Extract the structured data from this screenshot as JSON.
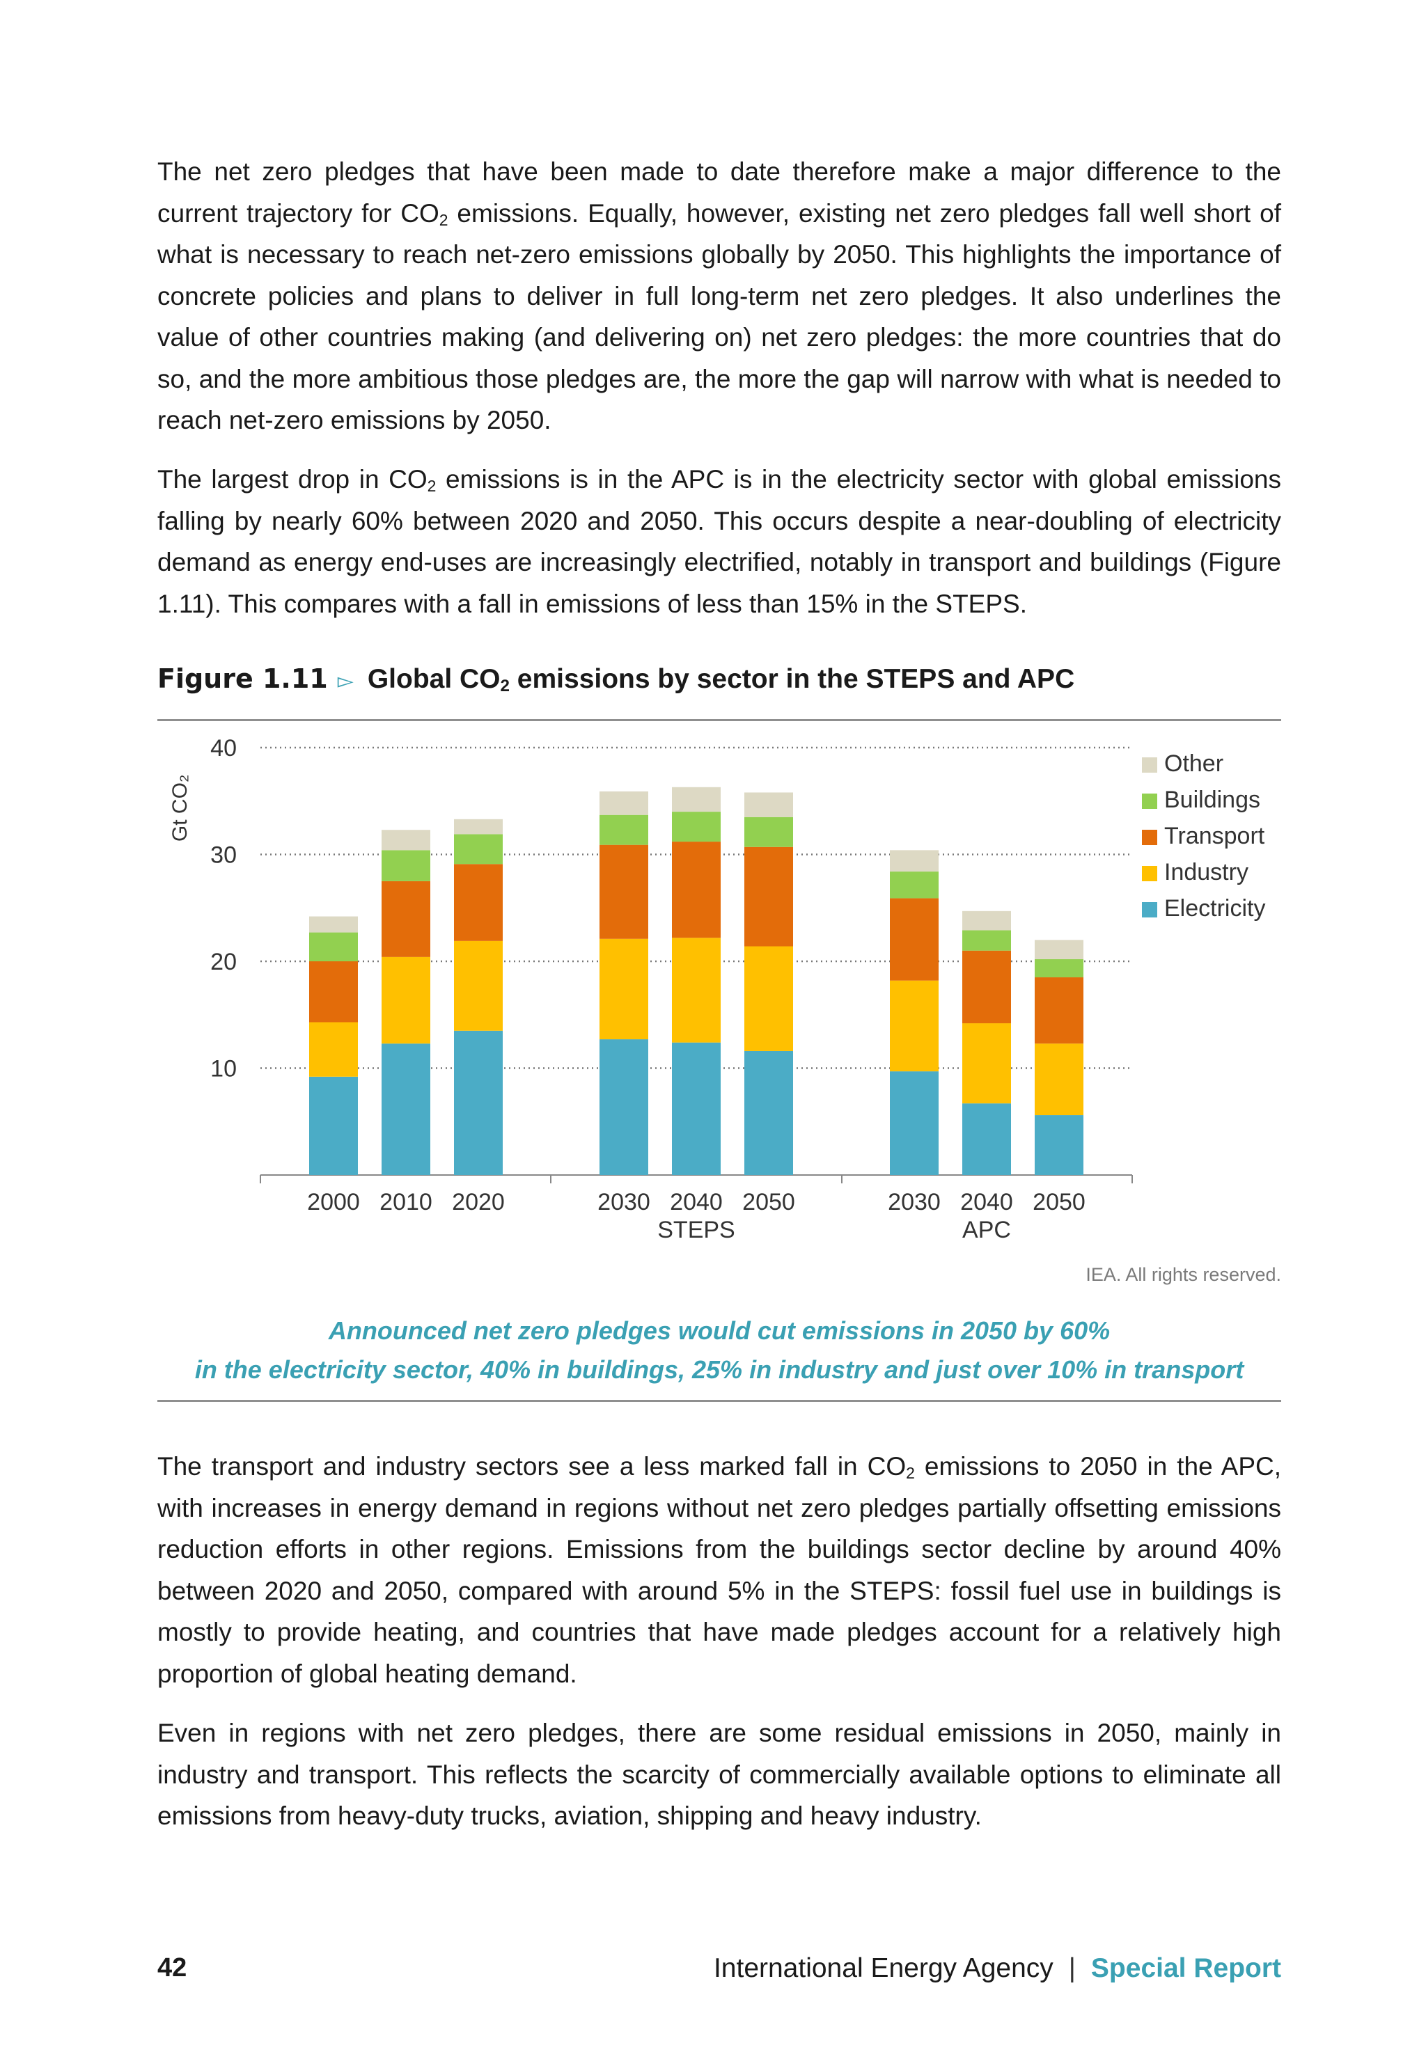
{
  "paragraphs": {
    "p1_a": "The net zero pledges that have been made to date therefore make a major difference to the current trajectory for CO",
    "p1_sub": "2",
    "p1_b": " emissions. Equally, however, existing net zero pledges fall well short of what is necessary to reach net-zero emissions globally by 2050. This highlights the importance of concrete policies and plans to deliver in full long-term net zero pledges. It also underlines the value of other countries making (and delivering on) net zero pledges: the more countries that do so, and the more ambitious those pledges are, the more the gap will narrow with what is needed to reach net-zero emissions by 2050.",
    "p2_a": "The largest drop in CO",
    "p2_sub": "2",
    "p2_b": " emissions is in the APC is in the electricity sector with global emissions falling by nearly 60% between 2020 and 2050. This occurs despite a near-doubling of electricity demand as energy end-uses are increasingly electrified, notably in transport and buildings (Figure 1.11). This compares with a fall in emissions of less than 15% in the STEPS.",
    "p3_a": "The transport and industry sectors see a less marked fall in CO",
    "p3_sub": "2",
    "p3_b": " emissions to 2050 in the APC, with increases in energy demand in regions without net zero pledges partially offsetting emissions reduction efforts in other regions. Emissions from the buildings sector decline by around 40% between 2020 and 2050, compared with around 5% in the STEPS: fossil fuel use in buildings is mostly to provide heating, and countries that have made pledges account for a relatively high proportion of global heating demand.",
    "p4": "Even in regions with net zero pledges, there are some residual emissions in 2050, mainly in industry and transport. This reflects the scarcity of commercially available options to eliminate all emissions from heavy-duty trucks, aviation, shipping and heavy industry."
  },
  "figure": {
    "number": "Figure 1.11",
    "title_a": "Global CO",
    "title_sub": "2",
    "title_b": " emissions by sector in the STEPS and APC",
    "rights": "IEA. All rights reserved.",
    "caption_line1": "Announced net zero pledges would cut emissions in 2050 by 60%",
    "caption_line2": "in the electricity sector, 40% in buildings, 25% in industry and just over 10% in transport"
  },
  "chart_data": {
    "type": "bar",
    "stacked": true,
    "ylabel": "Gt CO₂",
    "ylim": [
      0,
      40
    ],
    "yticks": [
      10,
      20,
      30,
      40
    ],
    "grid": true,
    "legend_position": "right",
    "categories": [
      "2000",
      "2010",
      "2020",
      "2030",
      "2040",
      "2050",
      "2030",
      "2040",
      "2050"
    ],
    "groups": [
      {
        "label": "",
        "categories": [
          "2000",
          "2010",
          "2020"
        ]
      },
      {
        "label": "STEPS",
        "categories": [
          "2030",
          "2040",
          "2050"
        ]
      },
      {
        "label": "APC",
        "categories": [
          "2030",
          "2040",
          "2050"
        ]
      }
    ],
    "series": [
      {
        "name": "Electricity",
        "color": "#4bacc6",
        "values": [
          9.2,
          12.3,
          13.5,
          12.7,
          12.4,
          11.6,
          9.7,
          6.7,
          5.6
        ]
      },
      {
        "name": "Industry",
        "color": "#ffc000",
        "values": [
          5.1,
          8.1,
          8.4,
          9.4,
          9.8,
          9.8,
          8.5,
          7.5,
          6.7
        ]
      },
      {
        "name": "Transport",
        "color": "#e36c0a",
        "values": [
          5.7,
          7.1,
          7.2,
          8.8,
          9.0,
          9.3,
          7.7,
          6.8,
          6.2
        ]
      },
      {
        "name": "Buildings",
        "color": "#92d050",
        "values": [
          2.7,
          2.9,
          2.8,
          2.8,
          2.8,
          2.8,
          2.5,
          1.9,
          1.7
        ]
      },
      {
        "name": "Other",
        "color": "#ddd9c4",
        "values": [
          1.5,
          1.9,
          1.4,
          2.2,
          2.3,
          2.3,
          2.0,
          1.8,
          1.8
        ]
      }
    ]
  },
  "footer": {
    "page_number": "42",
    "agency": "International Energy Agency",
    "separator": "|",
    "report": "Special Report"
  }
}
